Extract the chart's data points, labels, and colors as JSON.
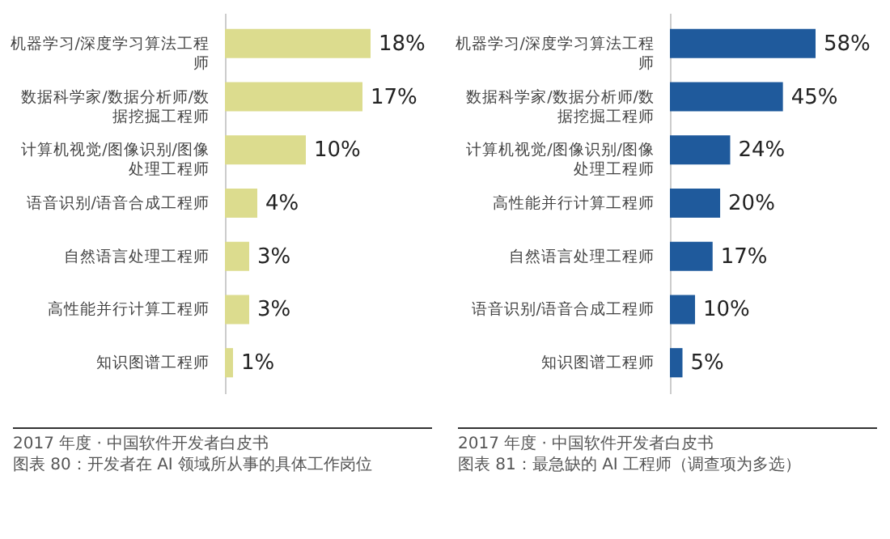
{
  "chart_data": [
    {
      "type": "bar",
      "orientation": "horizontal",
      "categories": [
        "机器学习/深度学习算法工程师",
        "数据科学家/数据分析师/数据挖掘工程师",
        "计算机视觉/图像识别/图像处理工程师",
        "语音识别/语音合成工程师",
        "自然语言处理工程师",
        "高性能并行计算工程师",
        "知识图谱工程师"
      ],
      "values": [
        18,
        17,
        10,
        4,
        3,
        3,
        1
      ],
      "value_labels": [
        "18%",
        "17%",
        "10%",
        "4%",
        "3%",
        "3%",
        "1%"
      ],
      "color": "#dcdc8e",
      "annotations": [
        "2017 年度 · 中国软件开发者白皮书",
        "图表 80：开发者在 AI 领域所从事的具体工作岗位"
      ]
    },
    {
      "type": "bar",
      "orientation": "horizontal",
      "categories": [
        "机器学习/深度学习算法工程师",
        "数据科学家/数据分析师/数据挖掘工程师",
        "计算机视觉/图像识别/图像处理工程师",
        "高性能并行计算工程师",
        "自然语言处理工程师",
        "语音识别/语音合成工程师",
        "知识图谱工程师"
      ],
      "values": [
        58,
        45,
        24,
        20,
        17,
        10,
        5
      ],
      "value_labels": [
        "58%",
        "45%",
        "24%",
        "20%",
        "17%",
        "10%",
        "5%"
      ],
      "color": "#1f5a9c",
      "annotations": [
        "2017 年度 · 中国软件开发者白皮书",
        "图表 81：最急缺的 AI 工程师（调查项为多选）"
      ]
    }
  ]
}
